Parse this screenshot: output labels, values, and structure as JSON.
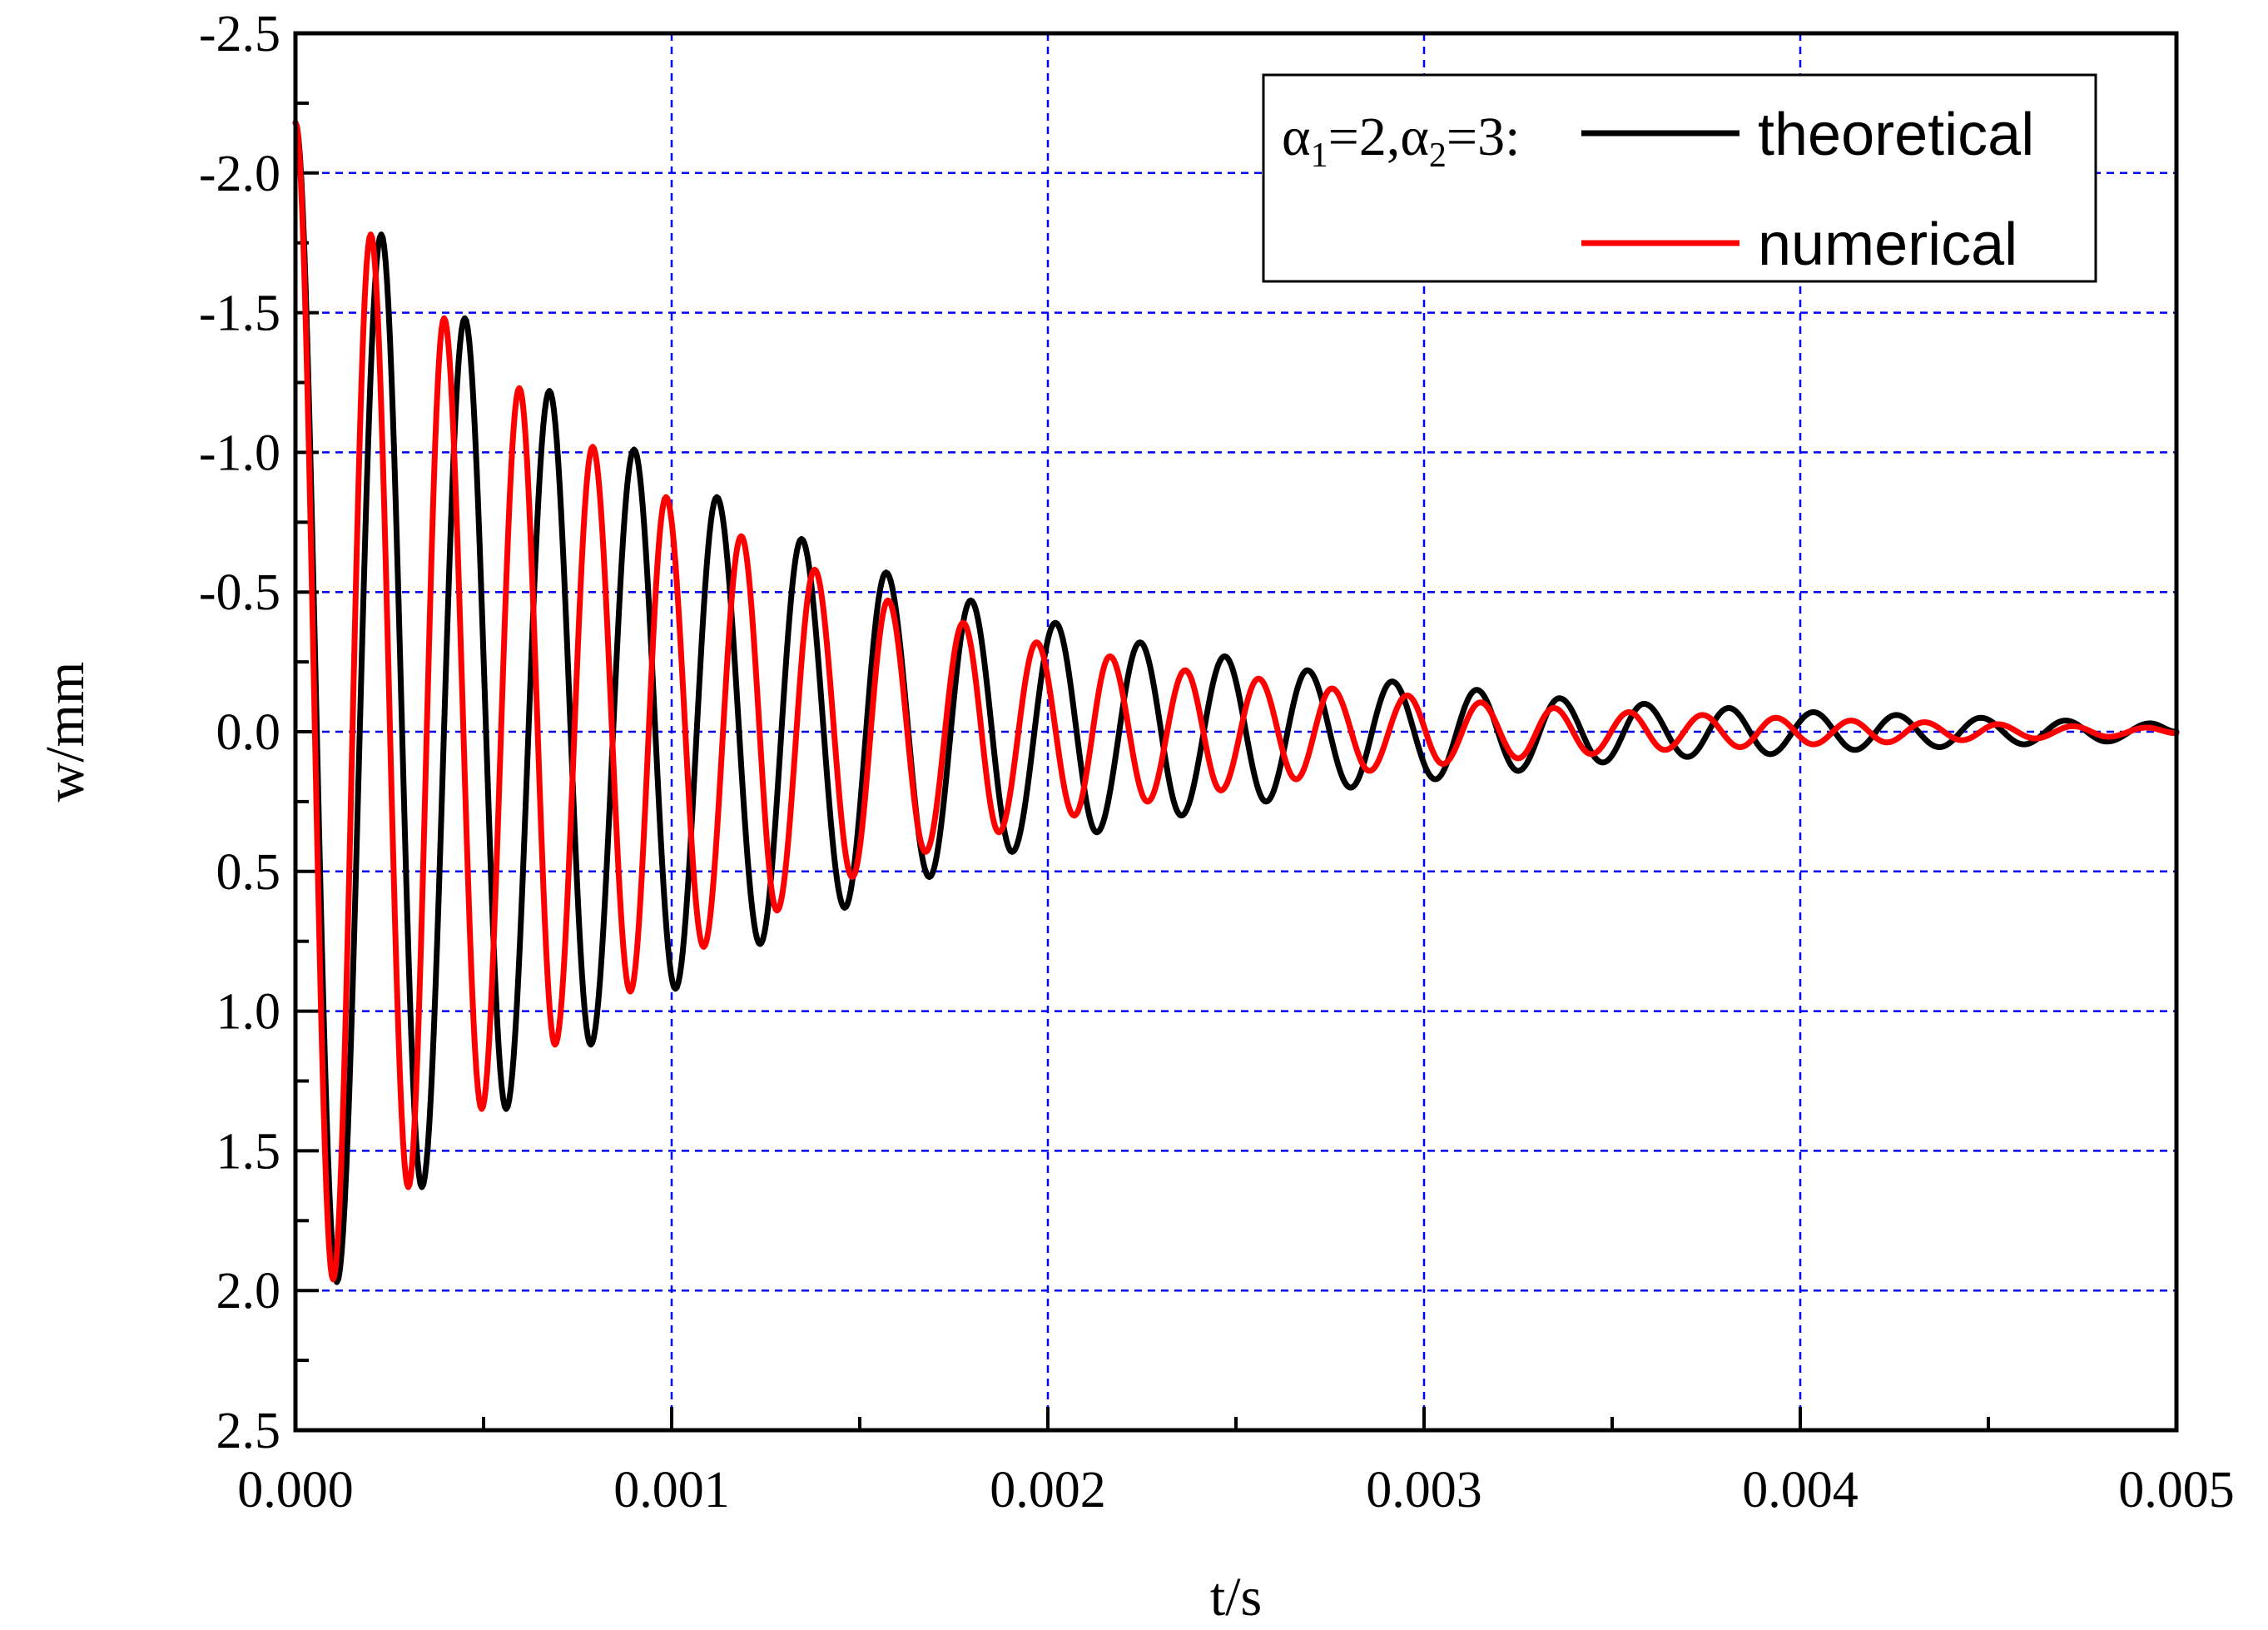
{
  "chart_data": {
    "type": "line",
    "xlabel": "t/s",
    "ylabel": "w/mm",
    "xlim": [
      0.0,
      0.005
    ],
    "ylim": [
      -2.5,
      2.5
    ],
    "y_axis_inverted": true,
    "grid": true,
    "grid_color": "#0000ff",
    "grid_style": "dashed",
    "x_ticks": [
      0.0,
      0.001,
      0.002,
      0.003,
      0.004,
      0.005
    ],
    "x_tick_labels": [
      "0.000",
      "0.001",
      "0.002",
      "0.003",
      "0.004",
      "0.005"
    ],
    "y_ticks": [
      -2.5,
      -2.0,
      -1.5,
      -1.0,
      -0.5,
      0.0,
      0.5,
      1.0,
      1.5,
      2.0,
      2.5
    ],
    "y_tick_labels": [
      "-2.5",
      "-2.0",
      "-1.5",
      "-1.0",
      "-0.5",
      "0.0",
      "0.5",
      "1.0",
      "1.5",
      "2.0",
      "2.5"
    ],
    "legend": {
      "placement": "top-right",
      "parameter_label": {
        "alpha1_symbol": "α",
        "alpha1_sub": "1",
        "alpha1_value": "=2,",
        "alpha2_symbol": "α",
        "alpha2_sub": "2",
        "alpha2_value": "=3:"
      }
    },
    "series": [
      {
        "name": "theoretical",
        "color": "#000000",
        "extrema": [
          [
            0.0,
            -2.18
          ],
          [
            0.00011,
            1.97
          ],
          [
            0.000228,
            -1.78
          ],
          [
            0.000336,
            1.63
          ],
          [
            0.00045,
            -1.48
          ],
          [
            0.00056,
            1.35
          ],
          [
            0.000675,
            -1.22
          ],
          [
            0.000785,
            1.12
          ],
          [
            0.0009,
            -1.01
          ],
          [
            0.00101,
            0.92
          ],
          [
            0.00112,
            -0.84
          ],
          [
            0.001235,
            0.76
          ],
          [
            0.001345,
            -0.69
          ],
          [
            0.00146,
            0.63
          ],
          [
            0.00157,
            -0.57
          ],
          [
            0.001685,
            0.52
          ],
          [
            0.001795,
            -0.47
          ],
          [
            0.001905,
            0.43
          ],
          [
            0.00202,
            -0.39
          ],
          [
            0.00213,
            0.36
          ],
          [
            0.002245,
            -0.32
          ],
          [
            0.002355,
            0.3
          ],
          [
            0.00247,
            -0.27
          ],
          [
            0.00258,
            0.25
          ],
          [
            0.00269,
            -0.22
          ],
          [
            0.002805,
            0.2
          ],
          [
            0.002915,
            -0.18
          ],
          [
            0.00303,
            0.17
          ],
          [
            0.00314,
            -0.15
          ],
          [
            0.00325,
            0.14
          ],
          [
            0.00336,
            -0.12
          ],
          [
            0.003475,
            0.11
          ],
          [
            0.003585,
            -0.1
          ],
          [
            0.0037,
            0.09
          ],
          [
            0.00381,
            -0.085
          ],
          [
            0.00392,
            0.08
          ],
          [
            0.004035,
            -0.07
          ],
          [
            0.004145,
            0.065
          ],
          [
            0.004255,
            -0.06
          ],
          [
            0.00437,
            0.055
          ],
          [
            0.00448,
            -0.05
          ],
          [
            0.004595,
            0.045
          ],
          [
            0.004705,
            -0.04
          ],
          [
            0.004815,
            0.035
          ],
          [
            0.00493,
            -0.03
          ],
          [
            0.005,
            0.0
          ]
        ]
      },
      {
        "name": "numerical",
        "color": "#ff0000",
        "extrema": [
          [
            0.0,
            -2.18
          ],
          [
            0.0001,
            1.96
          ],
          [
            0.0002,
            -1.78
          ],
          [
            0.0003,
            1.63
          ],
          [
            0.000395,
            -1.48
          ],
          [
            0.000495,
            1.35
          ],
          [
            0.000595,
            -1.23
          ],
          [
            0.00069,
            1.12
          ],
          [
            0.00079,
            -1.02
          ],
          [
            0.00089,
            0.93
          ],
          [
            0.000985,
            -0.84
          ],
          [
            0.001085,
            0.77
          ],
          [
            0.001185,
            -0.7
          ],
          [
            0.00128,
            0.64
          ],
          [
            0.00138,
            -0.58
          ],
          [
            0.00148,
            0.52
          ],
          [
            0.001575,
            -0.47
          ],
          [
            0.001675,
            0.43
          ],
          [
            0.001775,
            -0.39
          ],
          [
            0.00187,
            0.36
          ],
          [
            0.00197,
            -0.32
          ],
          [
            0.00207,
            0.3
          ],
          [
            0.002165,
            -0.27
          ],
          [
            0.002265,
            0.25
          ],
          [
            0.002365,
            -0.22
          ],
          [
            0.00246,
            0.21
          ],
          [
            0.00256,
            -0.19
          ],
          [
            0.00266,
            0.17
          ],
          [
            0.002755,
            -0.155
          ],
          [
            0.002855,
            0.14
          ],
          [
            0.002955,
            -0.13
          ],
          [
            0.00305,
            0.115
          ],
          [
            0.00315,
            -0.105
          ],
          [
            0.00325,
            0.095
          ],
          [
            0.003345,
            -0.085
          ],
          [
            0.003445,
            0.08
          ],
          [
            0.003545,
            -0.07
          ],
          [
            0.00364,
            0.065
          ],
          [
            0.00374,
            -0.06
          ],
          [
            0.00384,
            0.055
          ],
          [
            0.003935,
            -0.05
          ],
          [
            0.004035,
            0.045
          ],
          [
            0.004135,
            -0.04
          ],
          [
            0.00423,
            0.038
          ],
          [
            0.00433,
            -0.034
          ],
          [
            0.00443,
            0.03
          ],
          [
            0.004525,
            -0.027
          ],
          [
            0.004625,
            0.024
          ],
          [
            0.004725,
            -0.02
          ],
          [
            0.00482,
            0.018
          ],
          [
            0.00492,
            -0.015
          ],
          [
            0.005,
            0.005
          ]
        ]
      }
    ]
  }
}
